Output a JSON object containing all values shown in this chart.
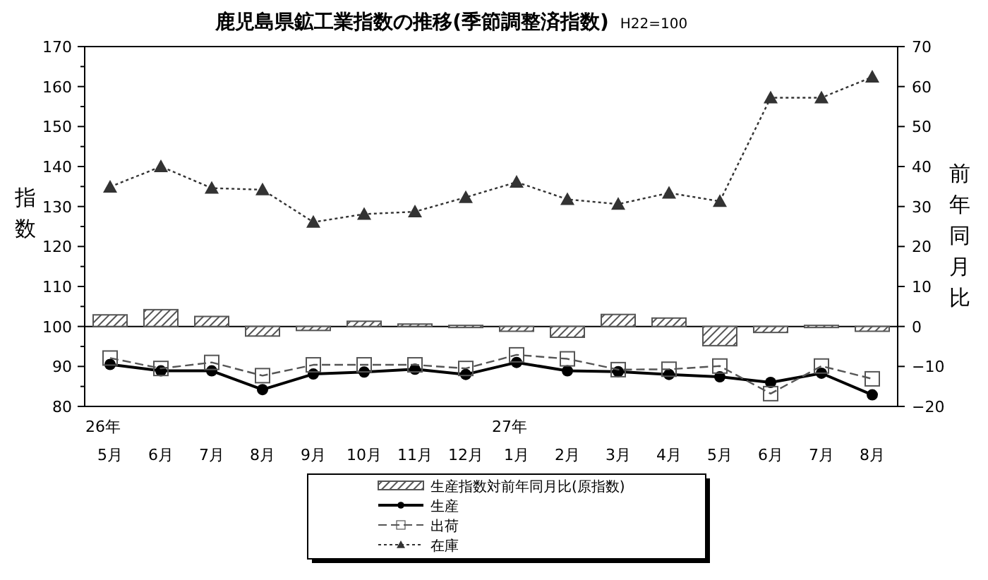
{
  "chart_data": {
    "type": "line",
    "title": "鹿児島県鉱工業指数の推移(季節調整済指数)",
    "subtitle": "H22=100",
    "ylabel": "指数",
    "y2label": "前年同月比",
    "categories": [
      "26年\n5月",
      "6月",
      "7月",
      "8月",
      "9月",
      "10月",
      "11月",
      "12月",
      "27年\n1月",
      "2月",
      "3月",
      "4月",
      "5月",
      "6月",
      "7月",
      "8月"
    ],
    "ylim": [
      80,
      170
    ],
    "yticks": [
      80,
      90,
      100,
      110,
      120,
      130,
      140,
      150,
      160,
      170
    ],
    "y2lim": [
      -20,
      70
    ],
    "y2ticks": [
      -20,
      -10,
      0,
      10,
      20,
      30,
      40,
      50,
      60,
      70
    ],
    "grid": false,
    "legend": "bottom",
    "ref_lines": [
      {
        "axis": "y2",
        "value": 0
      }
    ],
    "series": [
      {
        "name": "生産指数対前年同月比(原指数)",
        "type": "bar",
        "axis": "y2",
        "color": "#555555",
        "values": [
          2.9,
          4.2,
          2.5,
          -2.4,
          -1.0,
          1.3,
          0.6,
          0,
          -1.2,
          -2.7,
          3.0,
          2.1,
          -4.8,
          -1.5,
          -0.5,
          -1.2
        ]
      },
      {
        "name": "生産",
        "color": "#000000",
        "marker": "circle",
        "line_style": "solid",
        "values": [
          90.5,
          88.9,
          88.9,
          84.2,
          88.1,
          88.6,
          89.3,
          88.0,
          91.0,
          88.9,
          88.7,
          88.0,
          87.4,
          86.0,
          88.3,
          82.9
        ]
      },
      {
        "name": "出荷",
        "color": "#555555",
        "marker": "square",
        "line_style": "dashed",
        "values": [
          92.1,
          89.5,
          91.0,
          87.7,
          90.4,
          90.4,
          90.4,
          89.5,
          92.9,
          91.9,
          89.2,
          89.3,
          90.1,
          83.2,
          90.1,
          86.9
        ]
      },
      {
        "name": "在庫",
        "color": "#333333",
        "marker": "triangle",
        "line_style": "dotted",
        "values": [
          134.9,
          140.0,
          134.6,
          134.2,
          126.1,
          128.1,
          128.7,
          132.3,
          136.1,
          131.8,
          130.6,
          133.4,
          131.3,
          157.2,
          157.2,
          162.4
        ]
      }
    ]
  }
}
